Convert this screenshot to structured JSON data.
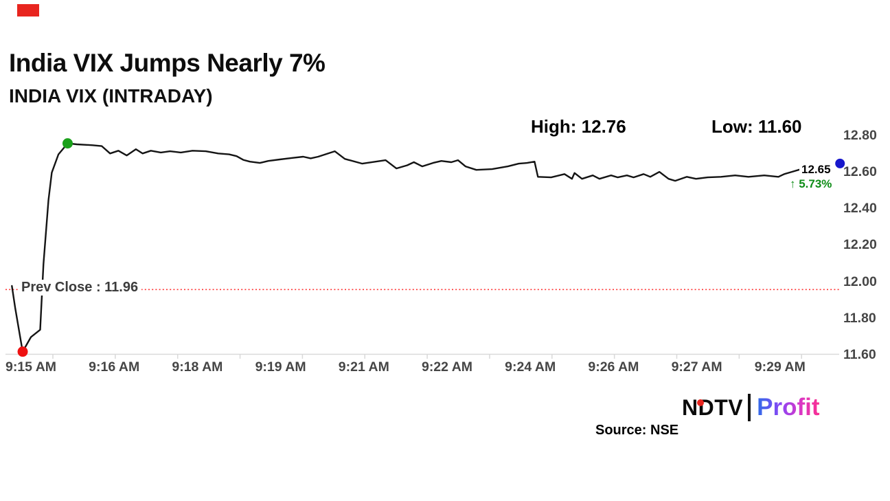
{
  "header": {
    "title": "India VIX Jumps Nearly 7%",
    "subtitle": "INDIA VIX (INTRADAY)",
    "high_label": "High: 12.76",
    "low_label": "Low: 11.60"
  },
  "chart_data": {
    "type": "line",
    "title": "INDIA VIX (INTRADAY)",
    "x_axis_labels": [
      "9:15 AM",
      "9:16 AM",
      "9:18 AM",
      "9:19 AM",
      "9:21 AM",
      "9:22 AM",
      "9:24 AM",
      "9:26 AM",
      "9:27 AM",
      "9:29 AM"
    ],
    "y_axis_labels": [
      "12.80",
      "12.60",
      "12.40",
      "12.20",
      "12.00",
      "11.80",
      "11.60"
    ],
    "ylim": [
      11.6,
      12.8
    ],
    "high": 12.76,
    "low": 11.6,
    "prev_close": 11.96,
    "last": 12.65,
    "change_pct": "5.73%",
    "prev_close_label": "Prev Close : 11.96",
    "last_label": "12.65",
    "change_label": "↑ 5.73%",
    "legend": "none",
    "grid": "off",
    "series": [
      {
        "name": "India VIX",
        "points": [
          [
            0.006,
            11.98
          ],
          [
            0.01,
            11.86
          ],
          [
            0.019,
            11.62
          ],
          [
            0.029,
            11.7
          ],
          [
            0.04,
            11.74
          ],
          [
            0.044,
            12.1
          ],
          [
            0.05,
            12.45
          ],
          [
            0.054,
            12.6
          ],
          [
            0.062,
            12.7
          ],
          [
            0.073,
            12.76
          ],
          [
            0.084,
            12.755
          ],
          [
            0.103,
            12.75
          ],
          [
            0.114,
            12.745
          ],
          [
            0.124,
            12.705
          ],
          [
            0.134,
            12.72
          ],
          [
            0.144,
            12.694
          ],
          [
            0.155,
            12.728
          ],
          [
            0.163,
            12.705
          ],
          [
            0.173,
            12.72
          ],
          [
            0.185,
            12.71
          ],
          [
            0.196,
            12.717
          ],
          [
            0.209,
            12.71
          ],
          [
            0.223,
            12.72
          ],
          [
            0.239,
            12.717
          ],
          [
            0.254,
            12.705
          ],
          [
            0.267,
            12.7
          ],
          [
            0.276,
            12.69
          ],
          [
            0.284,
            12.67
          ],
          [
            0.292,
            12.66
          ],
          [
            0.304,
            12.653
          ],
          [
            0.314,
            12.664
          ],
          [
            0.328,
            12.672
          ],
          [
            0.342,
            12.68
          ],
          [
            0.356,
            12.687
          ],
          [
            0.365,
            12.678
          ],
          [
            0.374,
            12.687
          ],
          [
            0.394,
            12.717
          ],
          [
            0.406,
            12.675
          ],
          [
            0.427,
            12.649
          ],
          [
            0.455,
            12.668
          ],
          [
            0.468,
            12.623
          ],
          [
            0.481,
            12.64
          ],
          [
            0.489,
            12.657
          ],
          [
            0.499,
            12.634
          ],
          [
            0.512,
            12.653
          ],
          [
            0.522,
            12.664
          ],
          [
            0.534,
            12.657
          ],
          [
            0.542,
            12.668
          ],
          [
            0.551,
            12.634
          ],
          [
            0.564,
            12.615
          ],
          [
            0.583,
            12.619
          ],
          [
            0.602,
            12.634
          ],
          [
            0.615,
            12.649
          ],
          [
            0.625,
            12.653
          ],
          [
            0.634,
            12.66
          ],
          [
            0.638,
            12.577
          ],
          [
            0.654,
            12.574
          ],
          [
            0.67,
            12.592
          ],
          [
            0.679,
            12.566
          ],
          [
            0.682,
            12.598
          ],
          [
            0.691,
            12.566
          ],
          [
            0.704,
            12.585
          ],
          [
            0.712,
            12.566
          ],
          [
            0.726,
            12.585
          ],
          [
            0.734,
            12.574
          ],
          [
            0.745,
            12.585
          ],
          [
            0.753,
            12.574
          ],
          [
            0.765,
            12.592
          ],
          [
            0.773,
            12.577
          ],
          [
            0.784,
            12.604
          ],
          [
            0.795,
            12.566
          ],
          [
            0.803,
            12.555
          ],
          [
            0.817,
            12.577
          ],
          [
            0.828,
            12.566
          ],
          [
            0.842,
            12.574
          ],
          [
            0.858,
            12.577
          ],
          [
            0.875,
            12.585
          ],
          [
            0.891,
            12.577
          ],
          [
            0.91,
            12.585
          ],
          [
            0.927,
            12.577
          ],
          [
            0.934,
            12.592
          ],
          [
            0.943,
            12.604
          ],
          [
            0.955,
            12.62
          ],
          [
            0.961,
            12.63
          ]
        ]
      }
    ],
    "markers": {
      "high": {
        "f": 0.073,
        "v": 12.76
      },
      "low": {
        "f": 0.019,
        "v": 11.62
      },
      "last": {
        "f": 1.001,
        "v": 12.65
      }
    }
  },
  "footer": {
    "source": "Source: NSE",
    "logo": {
      "ndtv": "NDTV",
      "profit": "Profit"
    }
  },
  "colors": {
    "line": "#141414",
    "high_dot": "#1ba11b",
    "low_dot": "#ee1111",
    "last_dot": "#1818cc",
    "prev_close_line": "#ff3333",
    "axis": "#d9d9d9",
    "axis_text": "#454545",
    "change_text": "#0e8c17",
    "brand_red": "#e8251f"
  }
}
